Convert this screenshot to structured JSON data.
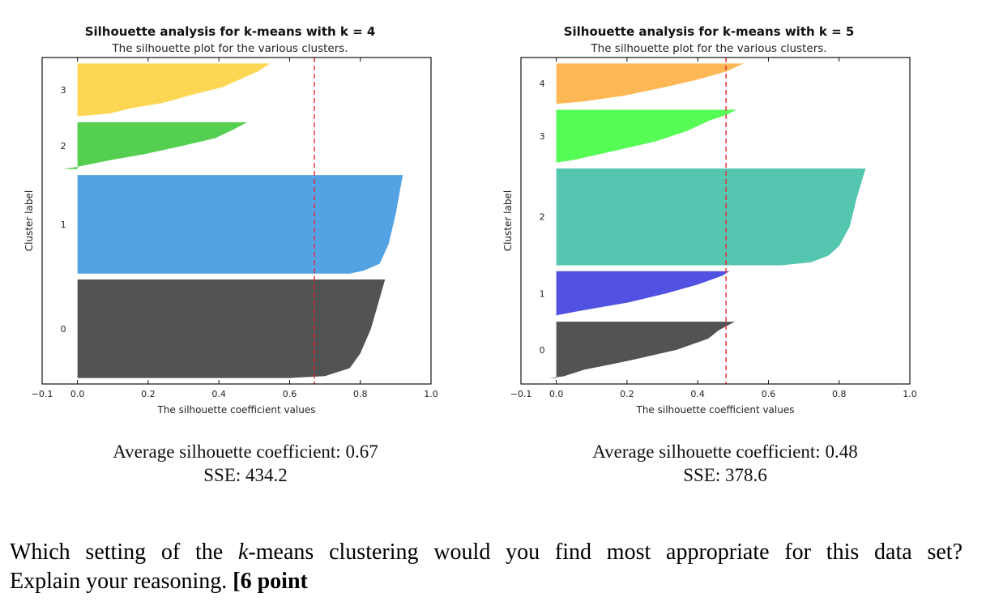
{
  "chart_data": [
    {
      "type": "silhouette",
      "title": "Silhouette analysis for k-means with k = 4",
      "subtitle": "The silhouette plot for the various clusters.",
      "xlabel": "The silhouette coefficient values",
      "ylabel": "Cluster label",
      "xlim": [
        -0.1,
        1.0
      ],
      "ylim": [
        0,
        550
      ],
      "xticks": [
        "-0.1",
        "0.0",
        "0.2",
        "0.4",
        "0.6",
        "0.8",
        "1.0"
      ],
      "grid": false,
      "average_silhouette": 0.67,
      "average_line_color": "#e8262a",
      "clusters": [
        {
          "label": "0",
          "size": 166,
          "color": "#4a4a4a",
          "profile": [
            [
              0,
              0.6
            ],
            [
              0.02,
              0.7
            ],
            [
              0.1,
              0.77
            ],
            [
              0.25,
              0.8
            ],
            [
              0.5,
              0.83
            ],
            [
              0.75,
              0.85
            ],
            [
              1,
              0.87
            ]
          ]
        },
        {
          "label": "1",
          "size": 166,
          "color": "#4a9de3",
          "profile": [
            [
              0,
              0.77
            ],
            [
              0.03,
              0.81
            ],
            [
              0.1,
              0.855
            ],
            [
              0.3,
              0.88
            ],
            [
              0.6,
              0.9
            ],
            [
              1,
              0.92
            ]
          ]
        },
        {
          "label": "2",
          "size": 79,
          "color": "#4ccc48",
          "profile": [
            [
              0,
              -0.04
            ],
            [
              0.05,
              0.0
            ],
            [
              0.2,
              0.1
            ],
            [
              0.32,
              0.19
            ],
            [
              0.5,
              0.3
            ],
            [
              0.66,
              0.39
            ],
            [
              0.84,
              0.44
            ],
            [
              1,
              0.48
            ]
          ]
        },
        {
          "label": "3",
          "size": 89,
          "color": "#fdd54b",
          "profile": [
            [
              0,
              0.0
            ],
            [
              0.05,
              0.09
            ],
            [
              0.15,
              0.15
            ],
            [
              0.25,
              0.24
            ],
            [
              0.4,
              0.32
            ],
            [
              0.55,
              0.41
            ],
            [
              0.7,
              0.46
            ],
            [
              0.85,
              0.51
            ],
            [
              1,
              0.545
            ]
          ]
        }
      ]
    },
    {
      "type": "silhouette",
      "title": "Silhouette analysis for k-means with k = 5",
      "subtitle": "The silhouette plot for the various clusters.",
      "xlabel": "The silhouette coefficient values",
      "ylabel": "Cluster label",
      "xlim": [
        -0.1,
        1.0
      ],
      "ylim": [
        0,
        550
      ],
      "xticks": [
        "-0.1",
        "0.0",
        "0.2",
        "0.4",
        "0.6",
        "0.8",
        "1.0"
      ],
      "grid": false,
      "average_silhouette": 0.48,
      "average_line_color": "#e8262a",
      "clusters": [
        {
          "label": "0",
          "size": 95,
          "color": "#4a4a4a",
          "profile": [
            [
              0,
              -0.02
            ],
            [
              0.03,
              0.02
            ],
            [
              0.15,
              0.08
            ],
            [
              0.3,
              0.2
            ],
            [
              0.5,
              0.34
            ],
            [
              0.7,
              0.43
            ],
            [
              0.85,
              0.46
            ],
            [
              1,
              0.505
            ]
          ]
        },
        {
          "label": "1",
          "size": 75,
          "color": "#4848e0",
          "profile": [
            [
              0,
              -0.005
            ],
            [
              0.1,
              0.06
            ],
            [
              0.3,
              0.205
            ],
            [
              0.5,
              0.31
            ],
            [
              0.7,
              0.4
            ],
            [
              0.9,
              0.47
            ],
            [
              1,
              0.49
            ]
          ]
        },
        {
          "label": "2",
          "size": 163,
          "color": "#4bc3ac",
          "profile": [
            [
              0,
              0.635
            ],
            [
              0.03,
              0.72
            ],
            [
              0.1,
              0.77
            ],
            [
              0.2,
              0.8
            ],
            [
              0.4,
              0.83
            ],
            [
              0.7,
              0.85
            ],
            [
              1,
              0.875
            ]
          ]
        },
        {
          "label": "3",
          "size": 89,
          "color": "#4cfd4c",
          "profile": [
            [
              0,
              0.0
            ],
            [
              0.05,
              0.05
            ],
            [
              0.2,
              0.15
            ],
            [
              0.4,
              0.28
            ],
            [
              0.6,
              0.37
            ],
            [
              0.8,
              0.435
            ],
            [
              0.9,
              0.48
            ],
            [
              1,
              0.51
            ]
          ]
        },
        {
          "label": "4",
          "size": 68,
          "color": "#fdb34c",
          "profile": [
            [
              0,
              0.0
            ],
            [
              0.05,
              0.07
            ],
            [
              0.2,
              0.19
            ],
            [
              0.4,
              0.3
            ],
            [
              0.6,
              0.4
            ],
            [
              0.8,
              0.48
            ],
            [
              1,
              0.53
            ]
          ]
        }
      ]
    }
  ],
  "captions": [
    {
      "avg": "Average silhouette coefficient: 0.67",
      "sse": "SSE: 434.2"
    },
    {
      "avg": "Average silhouette coefficient: 0.48",
      "sse": "SSE: 378.6"
    }
  ],
  "question": {
    "line1_pre": "Which setting of the ",
    "line1_k": "k",
    "line1_post": "-means clustering would you find most appropriate for this data set?",
    "line2_text": "Explain your reasoning. ",
    "line2_bold": "[6 point"
  }
}
